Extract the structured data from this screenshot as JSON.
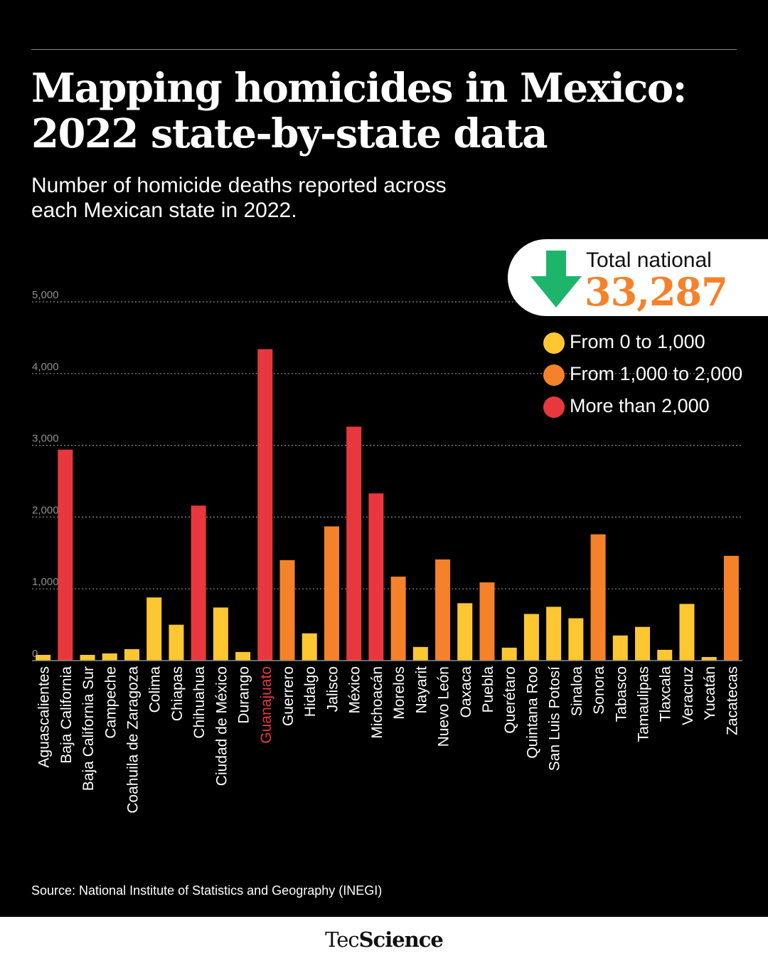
{
  "header": {
    "title_line1": "Mapping homicides in Mexico:",
    "title_line2": "2022 state-by-state data",
    "subtitle_line1": "Number of homicide deaths reported across",
    "subtitle_line2": "each Mexican state in 2022."
  },
  "total": {
    "label": "Total national",
    "value": "33,287",
    "arrow_color": "#1db56c",
    "value_color": "#f5822a"
  },
  "legend": [
    {
      "label": "From 0 to 1,000",
      "color": "#fdc732"
    },
    {
      "label": "From 1,000 to 2,000",
      "color": "#f5822a"
    },
    {
      "label": "More than 2,000",
      "color": "#e8383d"
    }
  ],
  "source": "Source: National Institute of Statistics and Geography (INEGI)",
  "brand": {
    "part1": "Tec",
    "part2": "Science"
  },
  "chart_data": {
    "type": "bar",
    "ylim": [
      0,
      5000
    ],
    "yticks": [
      "0",
      "1,000",
      "2,000",
      "3,000",
      "4,000",
      "5,000"
    ],
    "grid": true,
    "highlight_label_color": "#e8383d",
    "categories": [
      "Aguascalientes",
      "Baja California",
      "Baja California Sur",
      "Campeche",
      "Coahuila de Zaragoza",
      "Colima",
      "Chiapas",
      "Chihuahua",
      "Ciudad de México",
      "Durango",
      "Guanajuato",
      "Guerrero",
      "Hidalgo",
      "Jalisco",
      "México",
      "Michoacán",
      "Morelos",
      "Nayarit",
      "Nuevo León",
      "Oaxaca",
      "Puebla",
      "Querétaro",
      "Quintana Roo",
      "San Luis Potosí",
      "Sinaloa",
      "Sonora",
      "Tabasco",
      "Tamaulipas",
      "Tlaxcala",
      "Veracruz",
      "Yucatán",
      "Zacatecas"
    ],
    "values": [
      80,
      2940,
      80,
      100,
      160,
      880,
      500,
      2160,
      740,
      120,
      4340,
      1400,
      380,
      1870,
      3260,
      2330,
      1170,
      190,
      1410,
      800,
      1090,
      180,
      650,
      750,
      590,
      1760,
      350,
      470,
      150,
      790,
      50,
      1460
    ],
    "highlight_category": "Guanajuato"
  }
}
